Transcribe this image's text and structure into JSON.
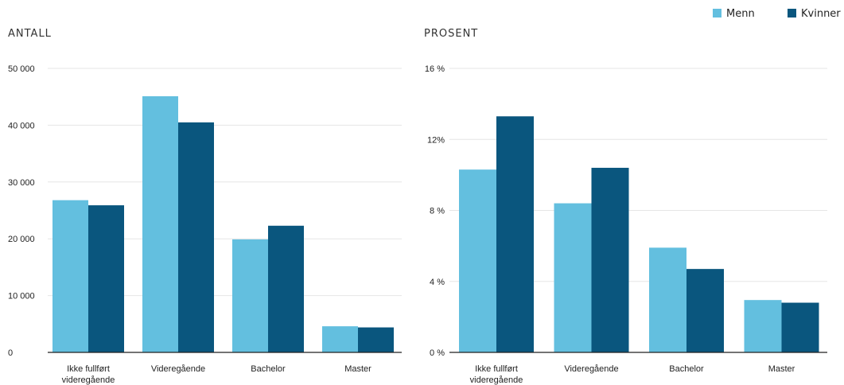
{
  "legend": [
    {
      "name": "Menn",
      "color": "#63bfdf"
    },
    {
      "name": "Kvinner",
      "color": "#0a567e"
    }
  ],
  "chart_data": [
    {
      "type": "bar",
      "title": "ANTALL",
      "categories": [
        [
          "Ikke fullført",
          "videregående"
        ],
        [
          "Videregående"
        ],
        [
          "Bachelor"
        ],
        [
          "Master"
        ]
      ],
      "series": [
        {
          "name": "Menn",
          "values": [
            26800,
            45100,
            19900,
            4600
          ]
        },
        {
          "name": "Kvinner",
          "values": [
            25900,
            40500,
            22300,
            4400
          ]
        }
      ],
      "ylim": [
        0,
        50000
      ],
      "yticks": [
        0,
        10000,
        20000,
        30000,
        40000,
        50000
      ],
      "ytick_labels": [
        "0",
        "10 000",
        "20 000",
        "30 000",
        "40 000",
        "50 000"
      ],
      "grid": true
    },
    {
      "type": "bar",
      "title": "PROSENT",
      "categories": [
        [
          "Ikke fullført",
          "videregående"
        ],
        [
          "Videregående"
        ],
        [
          "Bachelor"
        ],
        [
          "Master"
        ]
      ],
      "series": [
        {
          "name": "Menn",
          "values": [
            10.3,
            8.4,
            5.9,
            2.95
          ]
        },
        {
          "name": "Kvinner",
          "values": [
            13.3,
            10.4,
            4.7,
            2.8
          ]
        }
      ],
      "ylim": [
        0,
        16
      ],
      "yticks": [
        0,
        4,
        8,
        12,
        16
      ],
      "ytick_labels": [
        "0 %",
        "4 %",
        "8 %",
        "12%",
        "16 %"
      ],
      "grid": true
    }
  ]
}
